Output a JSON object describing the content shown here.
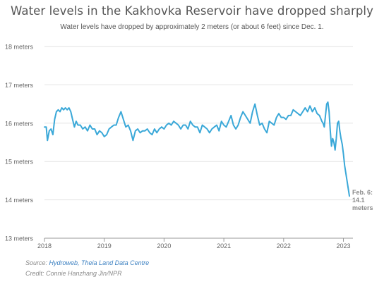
{
  "chart_data": {
    "type": "line",
    "title": "Water levels in the Kakhovka Reservoir have dropped sharply",
    "subtitle": "Water levels have dropped by approximately 2 meters (or about 6 feet) since Dec. 1.",
    "y_ticks": [
      "13 meters",
      "14 meters",
      "15 meters",
      "16 meters",
      "17 meters",
      "18 meters"
    ],
    "ylim": [
      13,
      18
    ],
    "x_ticks": [
      "2018",
      "2019",
      "2020",
      "2021",
      "2022",
      "2023"
    ],
    "xlim": [
      2018.0,
      2023.1
    ],
    "grid": "horizontal",
    "line_color": "#3aa8d8",
    "series": [
      {
        "x": [
          2018.0,
          2018.03,
          2018.05,
          2018.08,
          2018.11,
          2018.14,
          2018.17,
          2018.2,
          2018.23,
          2018.26,
          2018.29,
          2018.32,
          2018.35,
          2018.38,
          2018.41,
          2018.44,
          2018.47,
          2018.5,
          2018.53,
          2018.56,
          2018.6,
          2018.64,
          2018.68,
          2018.72,
          2018.76,
          2018.8,
          2018.84,
          2018.88,
          2018.92,
          2018.96,
          2019.0,
          2019.04,
          2019.08,
          2019.12,
          2019.16,
          2019.2,
          2019.24,
          2019.28,
          2019.32,
          2019.36,
          2019.4,
          2019.44,
          2019.48,
          2019.52,
          2019.56,
          2019.6,
          2019.64,
          2019.68,
          2019.72,
          2019.76,
          2019.8,
          2019.84,
          2019.88,
          2019.92,
          2019.96,
          2020.0,
          2020.04,
          2020.08,
          2020.12,
          2020.16,
          2020.2,
          2020.24,
          2020.28,
          2020.32,
          2020.36,
          2020.4,
          2020.44,
          2020.48,
          2020.52,
          2020.56,
          2020.6,
          2020.64,
          2020.68,
          2020.72,
          2020.76,
          2020.8,
          2020.84,
          2020.88,
          2020.92,
          2020.96,
          2021.0,
          2021.04,
          2021.08,
          2021.12,
          2021.16,
          2021.2,
          2021.24,
          2021.28,
          2021.32,
          2021.36,
          2021.4,
          2021.44,
          2021.48,
          2021.52,
          2021.56,
          2021.6,
          2021.64,
          2021.68,
          2021.72,
          2021.76,
          2021.8,
          2021.84,
          2021.88,
          2021.92,
          2021.96,
          2022.0,
          2022.04,
          2022.08,
          2022.12,
          2022.16,
          2022.2,
          2022.24,
          2022.28,
          2022.32,
          2022.36,
          2022.4,
          2022.44,
          2022.48,
          2022.52,
          2022.56,
          2022.6,
          2022.64,
          2022.66,
          2022.68,
          2022.7,
          2022.72,
          2022.74,
          2022.76,
          2022.78,
          2022.8,
          2022.82,
          2022.84,
          2022.86,
          2022.88,
          2022.9,
          2022.92,
          2022.94,
          2022.96,
          2022.98,
          2023.0,
          2023.02,
          2023.04,
          2023.06,
          2023.08,
          2023.1
        ],
        "y": [
          15.9,
          15.9,
          15.55,
          15.8,
          15.85,
          15.7,
          16.1,
          16.3,
          16.35,
          16.3,
          16.4,
          16.35,
          16.4,
          16.35,
          16.4,
          16.3,
          16.1,
          15.9,
          16.05,
          15.95,
          15.95,
          15.85,
          15.9,
          15.8,
          15.95,
          15.85,
          15.85,
          15.7,
          15.8,
          15.75,
          15.65,
          15.7,
          15.85,
          15.9,
          15.95,
          15.95,
          16.15,
          16.3,
          16.1,
          15.9,
          15.95,
          15.8,
          15.55,
          15.8,
          15.85,
          15.75,
          15.8,
          15.8,
          15.85,
          15.75,
          15.7,
          15.85,
          15.75,
          15.85,
          15.9,
          15.85,
          15.95,
          16.0,
          15.95,
          16.05,
          16.0,
          15.95,
          15.85,
          15.95,
          15.95,
          15.85,
          16.05,
          15.95,
          15.9,
          15.9,
          15.75,
          15.95,
          15.9,
          15.85,
          15.75,
          15.85,
          15.9,
          15.95,
          15.8,
          16.05,
          15.95,
          15.9,
          16.05,
          16.2,
          15.95,
          15.85,
          15.95,
          16.15,
          16.3,
          16.2,
          16.1,
          16.0,
          16.3,
          16.5,
          16.2,
          15.95,
          16.0,
          15.85,
          15.75,
          16.05,
          16.0,
          15.95,
          16.15,
          16.25,
          16.15,
          16.15,
          16.1,
          16.2,
          16.2,
          16.35,
          16.3,
          16.25,
          16.2,
          16.3,
          16.4,
          16.3,
          16.45,
          16.3,
          16.4,
          16.25,
          16.2,
          16.05,
          16.0,
          15.9,
          16.2,
          16.5,
          16.55,
          16.3,
          15.8,
          15.4,
          15.6,
          15.5,
          15.3,
          15.6,
          16.0,
          16.05,
          15.8,
          15.6,
          15.45,
          15.2,
          14.9,
          14.7,
          14.5,
          14.3,
          14.1
        ]
      }
    ],
    "annotation": {
      "line1": "Feb. 6:",
      "line2": "14.1",
      "line3": "meters",
      "color": "#8a8a8a"
    }
  },
  "footer": {
    "source_prefix": "Source: ",
    "source_links": "Hydroweb, Theia Land Data Centre",
    "credit": "Credit: Connie Hanzhang Jin/NPR"
  }
}
